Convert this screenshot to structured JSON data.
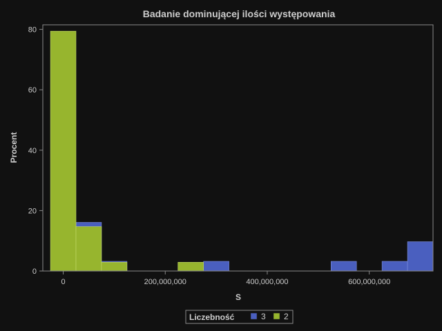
{
  "chart_data": {
    "type": "bar",
    "title": "Badanie dominującej ilości występowania",
    "xlabel": "S",
    "ylabel": "Procent",
    "bin_width": 50000000,
    "bin_starts": [
      -25000000,
      25000000,
      75000000,
      125000000,
      175000000,
      225000000,
      275000000,
      325000000,
      375000000,
      425000000,
      475000000,
      525000000,
      575000000,
      625000000,
      675000000
    ],
    "series": [
      {
        "name": "3",
        "color": "#4a5fbf",
        "values": [
          0,
          16.1,
          3.2,
          0,
          0,
          0,
          3.2,
          0,
          0,
          0,
          0,
          3.2,
          0,
          3.2,
          9.7
        ]
      },
      {
        "name": "2",
        "color": "#97b52e",
        "values": [
          79.4,
          14.7,
          2.9,
          0,
          0,
          2.9,
          0,
          0,
          0,
          0,
          0,
          0,
          0,
          0,
          0
        ]
      }
    ],
    "x_ticks": [
      0,
      200000000,
      400000000,
      600000000
    ],
    "x_tick_labels": [
      "0",
      "200,000,000",
      "400,000,000",
      "600,000,000"
    ],
    "y_ticks": [
      0,
      20,
      40,
      60,
      80
    ],
    "y_tick_labels": [
      "0",
      "20",
      "40",
      "60",
      "80"
    ],
    "xlim": [
      -40000000,
      725000000
    ],
    "ylim": [
      0,
      81.5
    ],
    "grid": false,
    "legend": {
      "title": "Liczebność",
      "position": "bottom-center",
      "entries": [
        "3",
        "2"
      ]
    }
  }
}
